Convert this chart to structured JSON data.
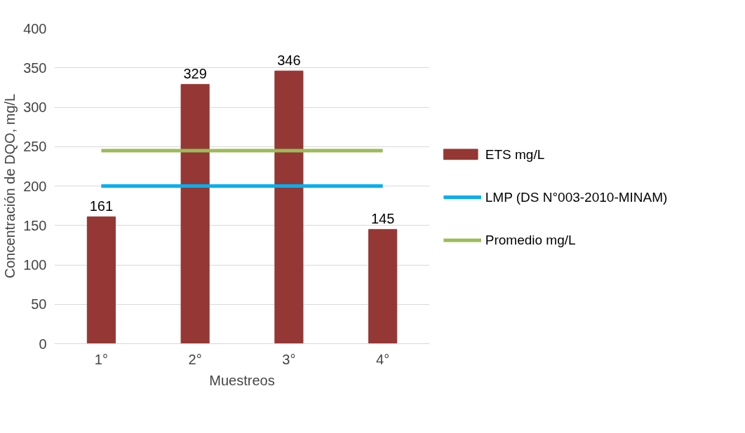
{
  "chart_data": {
    "type": "bar",
    "xlabel": "Muestreos",
    "ylabel": "Concentración de DQO, mg/L",
    "categories": [
      "1°",
      "2°",
      "3°",
      "4°"
    ],
    "series": [
      {
        "name": "ETS mg/L",
        "type": "bar",
        "color": "#953735",
        "values": [
          161,
          329,
          346,
          145
        ],
        "value_labels": [
          "161",
          "329",
          "346",
          "145"
        ]
      },
      {
        "name": "LMP (DS N°003-2010-MINAM)",
        "type": "line",
        "color": "#00b0f0",
        "values": [
          200,
          200,
          200,
          200
        ]
      },
      {
        "name": "Promedio mg/L",
        "type": "line",
        "color": "#9bbb59",
        "values": [
          245,
          245,
          245,
          245
        ]
      }
    ],
    "ylim": [
      0,
      400
    ],
    "yticks": [
      0,
      50,
      100,
      150,
      200,
      250,
      300,
      350,
      400
    ],
    "grid": "y",
    "legend": "right"
  }
}
